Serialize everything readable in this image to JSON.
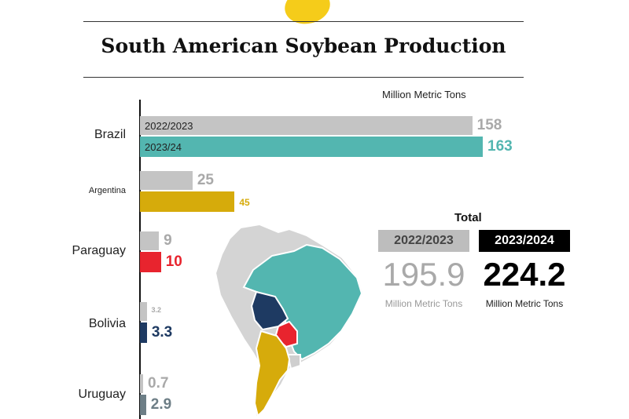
{
  "title": "South American Soybean Production",
  "units": "Million Metric Tons",
  "colors": {
    "previous": "#c4c4c4",
    "brazil": "#53b6b0",
    "argentina": "#d6ab0b",
    "paraguay": "#e8242e",
    "bolivia": "#1e3a62",
    "uruguay": "#6d7e86",
    "map_other": "#d4d4d4"
  },
  "chart_data": {
    "type": "bar",
    "orientation": "horizontal",
    "title": "South American Soybean Production",
    "units": "Million Metric Tons",
    "categories": [
      "Brazil",
      "Argentina",
      "Paraguay",
      "Bolivia",
      "Uruguay"
    ],
    "series": [
      {
        "name": "2022/2023",
        "values": [
          158,
          25,
          9,
          3.2,
          0.7
        ]
      },
      {
        "name": "2023/24",
        "values": [
          163,
          45,
          10,
          3.3,
          2.9
        ]
      }
    ]
  },
  "labels": {
    "brazil": {
      "name": "Brazil",
      "prev": "158",
      "curr": "163",
      "prev_in": "2022/2023",
      "curr_in": "2023/24"
    },
    "argentina": {
      "name": "Argentina",
      "prev": "25",
      "curr": "45"
    },
    "paraguay": {
      "name": "Paraguay",
      "prev": "9",
      "curr": "10"
    },
    "bolivia": {
      "name": "Bolivia",
      "prev": "3.2",
      "curr": "3.3"
    },
    "uruguay": {
      "name": "Uruguay",
      "prev": "0.7",
      "curr": "2.9"
    }
  },
  "total": {
    "title": "Total",
    "prev_label": "2022/2023",
    "curr_label": "2023/2024",
    "prev_value": "195.9",
    "curr_value": "224.2",
    "prev_unit": "Million Metric Tons",
    "curr_unit": "Million Metric Tons"
  },
  "map": {
    "icon": "south-america-map"
  }
}
